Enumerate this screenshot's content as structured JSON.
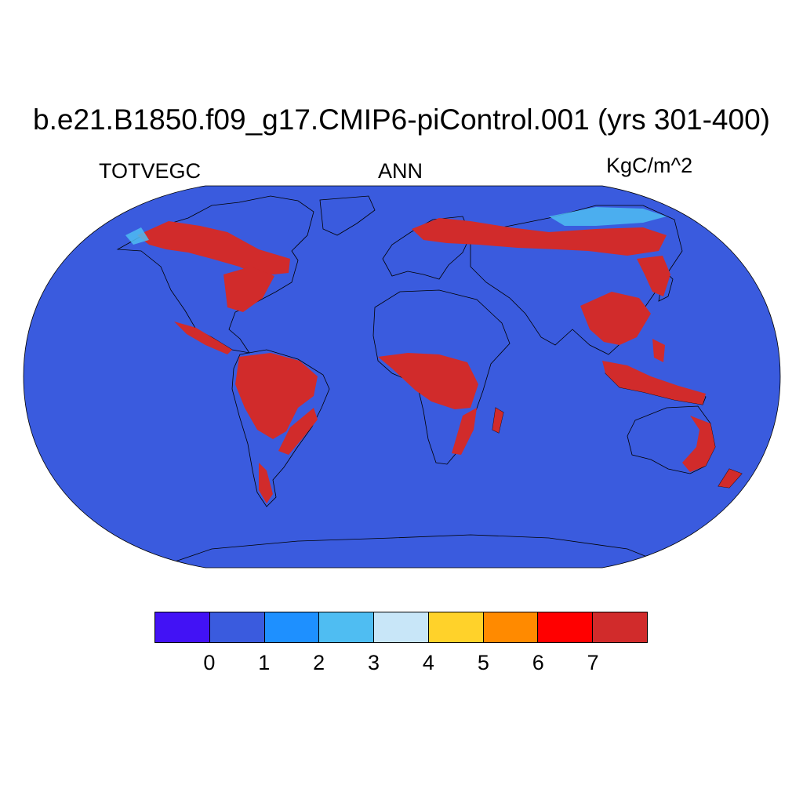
{
  "title": "b.e21.B1850.f09_g17.CMIP6-piControl.001 (yrs 301-400)",
  "left_label": "TOTVEGC",
  "center_label": "ANN",
  "right_label": "KgC/m^2",
  "map": {
    "projection": "Robinson",
    "ocean_color": "#3a5bde",
    "coastline_color": "#000000",
    "high_value_color": "#d12b2b",
    "low_value_color": "#3a5bde"
  },
  "colorbar": {
    "colors": [
      "#4212f5",
      "#3a5bde",
      "#1e90ff",
      "#4fbdf2",
      "#c8e6f8",
      "#ffd22a",
      "#ff8a00",
      "#ff0000",
      "#d12b2b"
    ],
    "tick_labels": [
      "0",
      "1",
      "2",
      "3",
      "4",
      "5",
      "6",
      "7"
    ]
  }
}
